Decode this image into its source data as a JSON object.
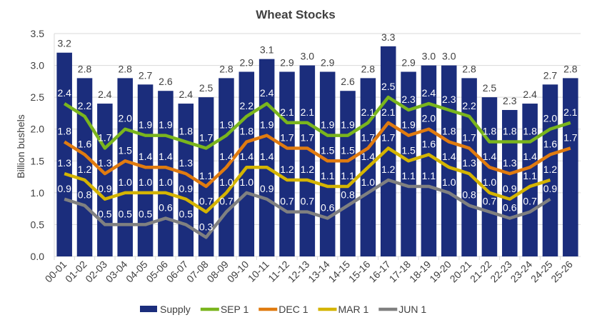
{
  "chart_data": {
    "type": "bar+line",
    "title": "Wheat Stocks",
    "ylabel": "Billion bushels",
    "xlabel": "",
    "ylim": [
      0,
      3.5
    ],
    "yticks": [
      "0.0",
      "0.5",
      "1.0",
      "1.5",
      "2.0",
      "2.5",
      "3.0",
      "3.5"
    ],
    "grid": true,
    "legend_position": "bottom",
    "categories": [
      "00-01",
      "01-02",
      "02-03",
      "03-04",
      "04-05",
      "05-06",
      "06-07",
      "07-08",
      "08-09",
      "09-10",
      "10-11",
      "11-12",
      "12-13",
      "13-14",
      "14-15",
      "15-16",
      "16-17",
      "17-18",
      "18-19",
      "19-20",
      "20-21",
      "21-22",
      "22-23",
      "23-24",
      "24-25",
      "25-26"
    ],
    "series": [
      {
        "name": "Supply",
        "type": "bar",
        "color": "#1b2d7c",
        "values": [
          3.2,
          2.8,
          2.4,
          2.8,
          2.7,
          2.6,
          2.4,
          2.5,
          2.8,
          2.9,
          3.1,
          2.9,
          3.0,
          2.9,
          2.6,
          2.8,
          3.3,
          2.9,
          3.0,
          3.0,
          2.8,
          2.5,
          2.3,
          2.4,
          2.7,
          2.8
        ]
      },
      {
        "name": "SEP 1",
        "type": "line",
        "color": "#7ab51d",
        "values": [
          2.4,
          2.2,
          1.7,
          2.0,
          1.9,
          1.9,
          1.8,
          1.7,
          1.9,
          2.2,
          2.4,
          2.1,
          2.1,
          1.9,
          1.9,
          2.1,
          2.5,
          2.3,
          2.4,
          2.3,
          2.2,
          1.8,
          1.8,
          1.8,
          2.0,
          2.1
        ]
      },
      {
        "name": "DEC 1",
        "type": "line",
        "color": "#e07b10",
        "values": [
          1.8,
          1.6,
          1.3,
          1.5,
          1.4,
          1.4,
          1.3,
          1.1,
          1.4,
          1.8,
          1.9,
          1.7,
          1.7,
          1.5,
          1.5,
          1.7,
          2.1,
          1.9,
          2.0,
          1.8,
          1.7,
          1.4,
          1.3,
          1.4,
          1.6,
          1.7
        ]
      },
      {
        "name": "MAR 1",
        "type": "line",
        "color": "#d4b400",
        "values": [
          1.3,
          1.2,
          0.9,
          1.0,
          1.0,
          1.0,
          0.9,
          0.7,
          1.0,
          1.4,
          1.4,
          1.2,
          1.2,
          1.1,
          1.1,
          1.4,
          1.7,
          1.5,
          1.6,
          1.4,
          1.3,
          1.0,
          0.9,
          1.1,
          1.2,
          null
        ]
      },
      {
        "name": "JUN 1",
        "type": "line",
        "color": "#808080",
        "values": [
          0.9,
          0.8,
          0.5,
          0.5,
          0.5,
          0.6,
          0.5,
          0.3,
          0.7,
          1.0,
          0.9,
          0.7,
          0.7,
          0.6,
          0.8,
          1.0,
          1.2,
          1.1,
          1.1,
          1.0,
          0.8,
          0.7,
          0.6,
          0.7,
          0.9,
          null
        ]
      }
    ]
  }
}
